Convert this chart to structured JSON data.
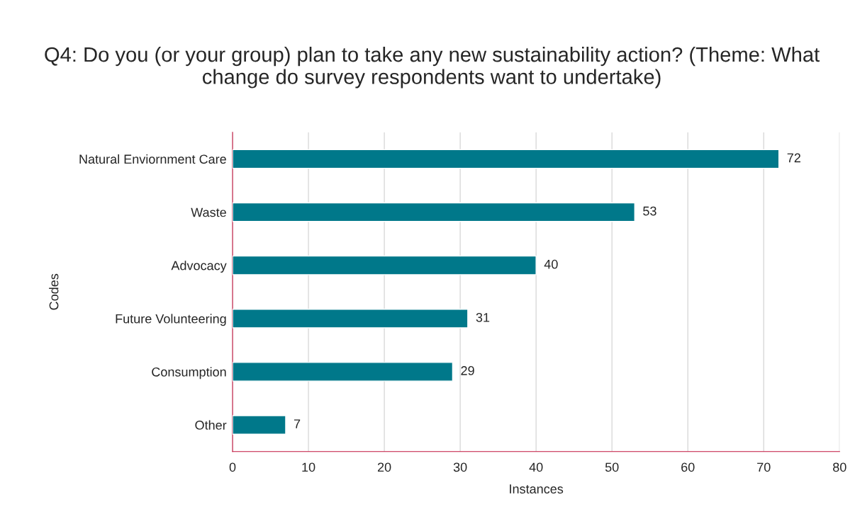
{
  "chart_data": {
    "type": "bar",
    "orientation": "horizontal",
    "title": "Q4: Do you (or your group) plan to take any new sustainability action? (Theme: What change do survey respondents want to undertake)",
    "xlabel": "Instances",
    "ylabel": "Codes",
    "categories": [
      "Natural Enviornment Care",
      "Waste",
      "Advocacy",
      "Future Volunteering",
      "Consumption",
      "Other"
    ],
    "values": [
      72,
      53,
      40,
      31,
      29,
      7
    ],
    "color": "#00788a",
    "xlim": [
      0,
      80
    ],
    "xticks": [
      0,
      10,
      20,
      30,
      40,
      50,
      60,
      70,
      80
    ],
    "grid": "x",
    "data_labels": true,
    "legend": false
  }
}
